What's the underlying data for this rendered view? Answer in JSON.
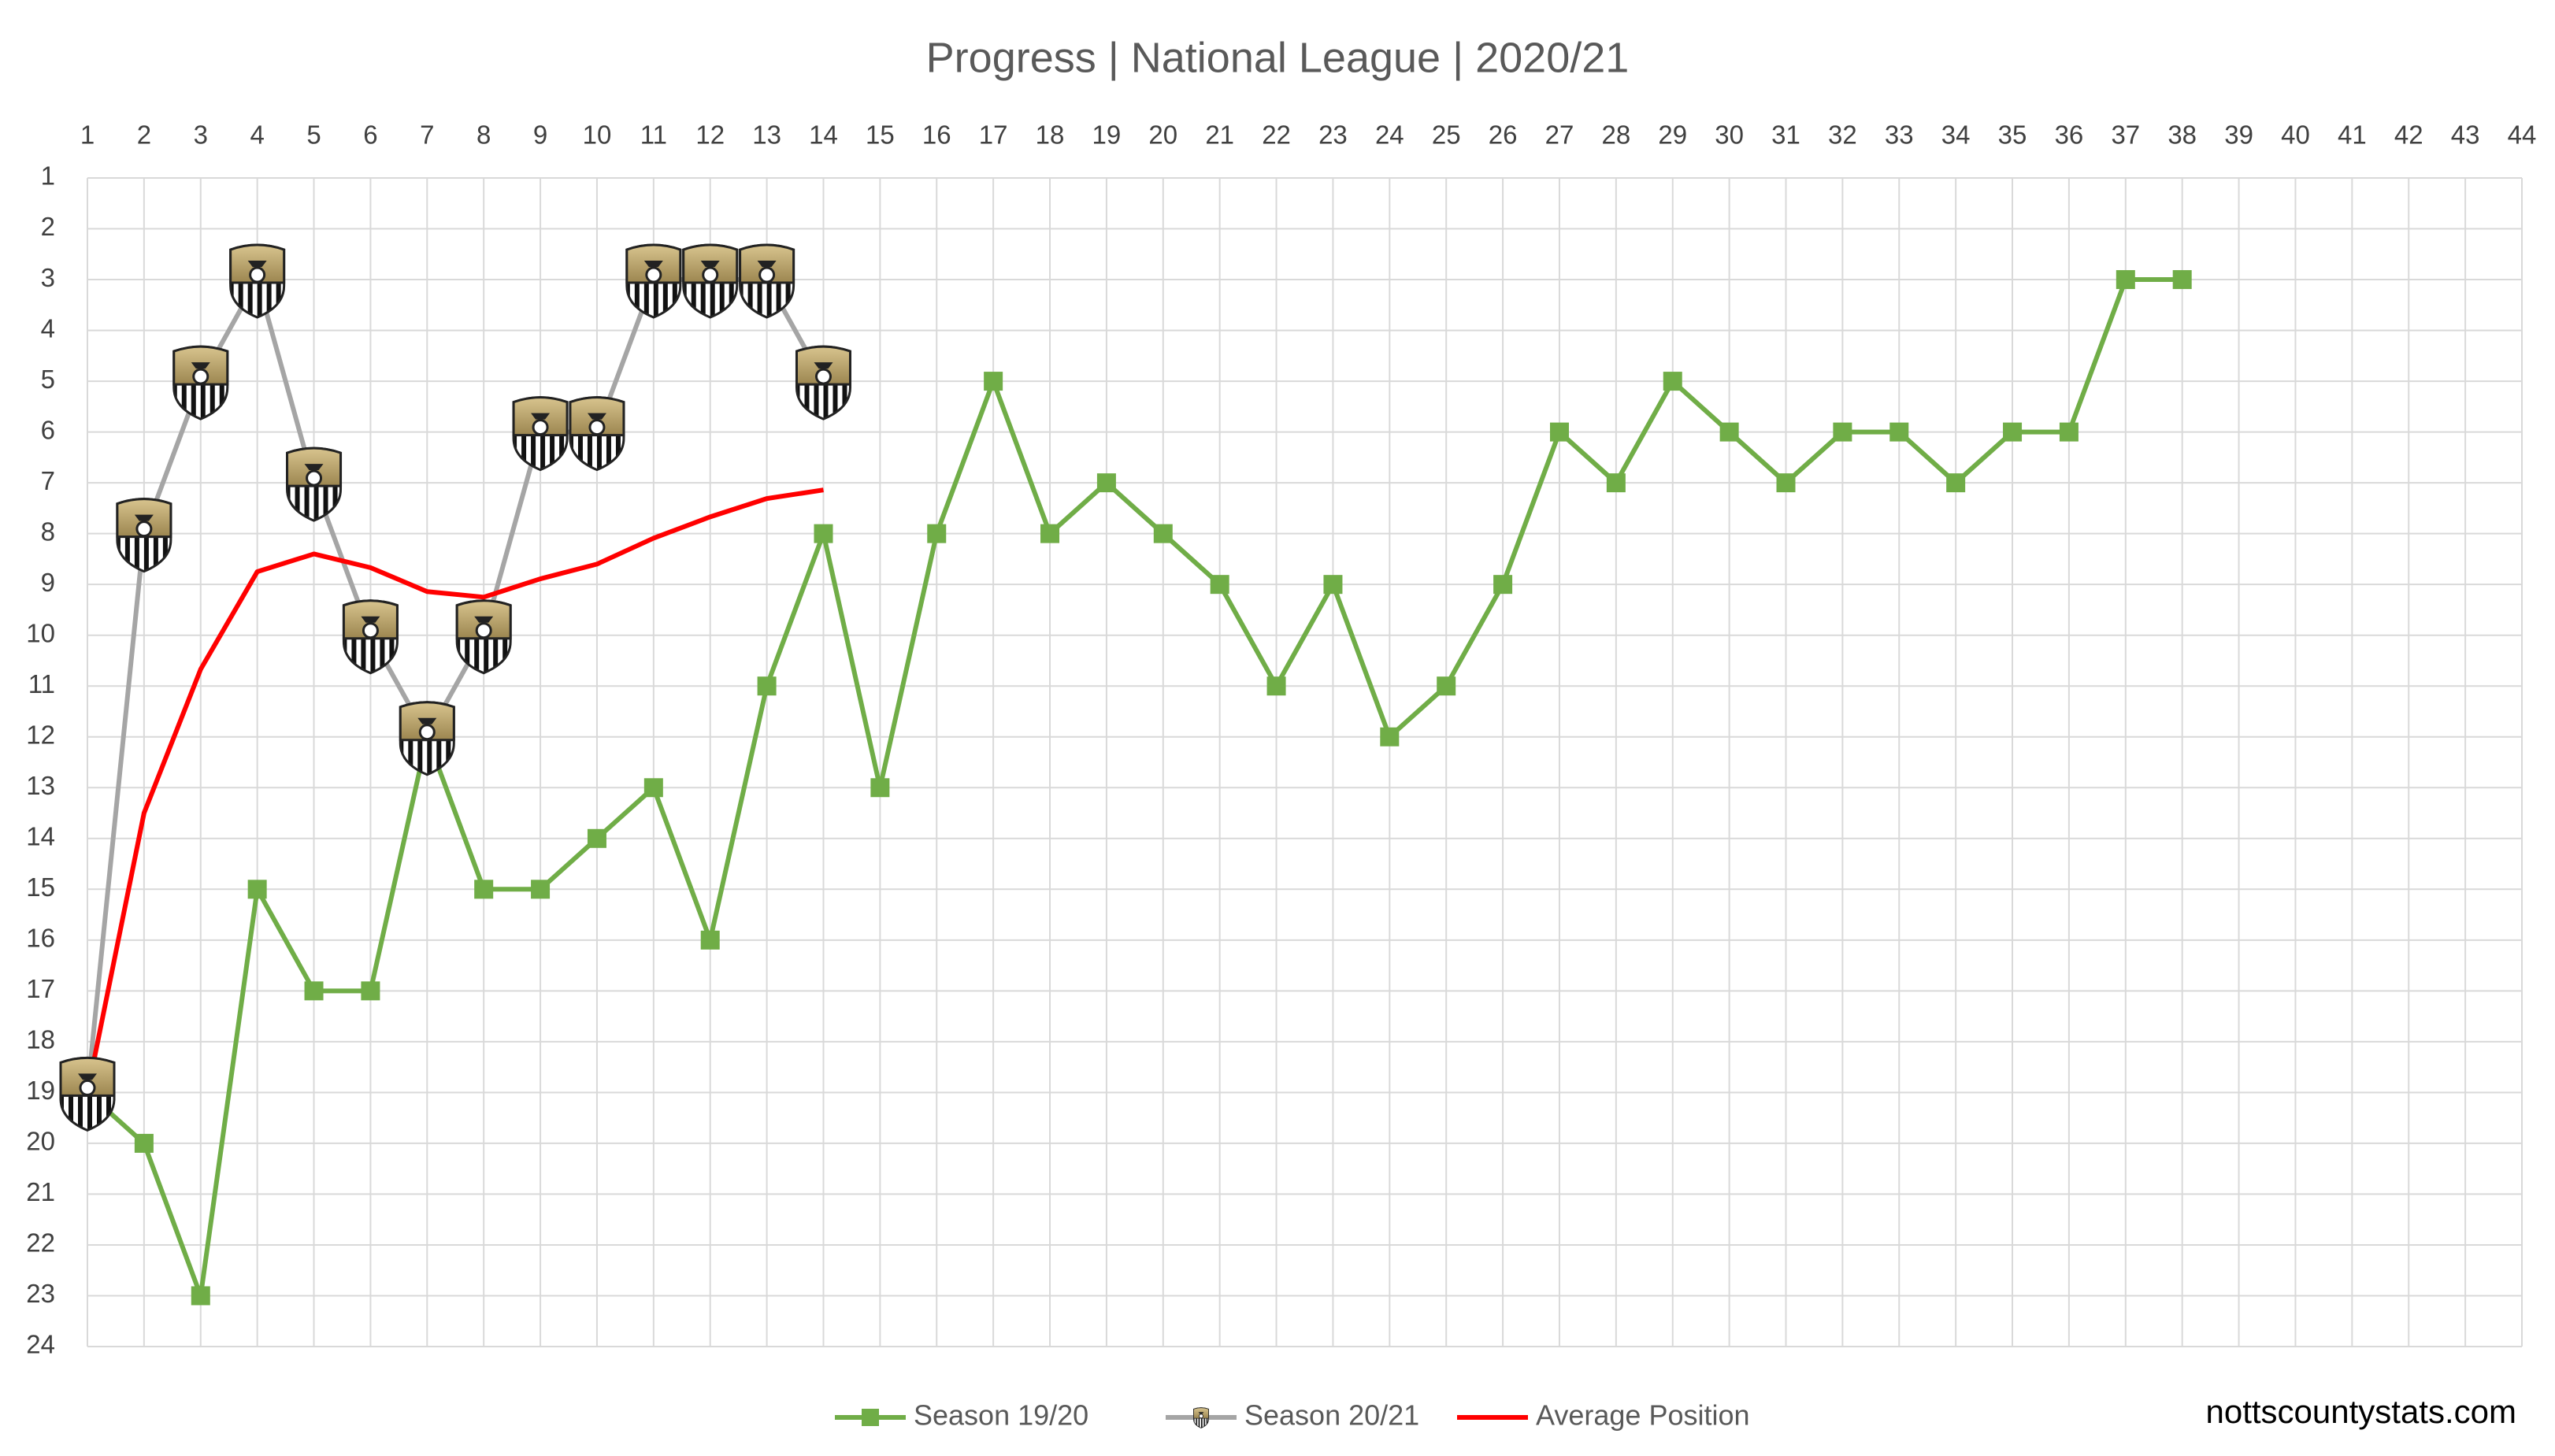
{
  "chart_data": {
    "type": "line",
    "title": "Progress | National League | 2020/21",
    "annotation": "nottscountystats.com",
    "xlim": [
      1,
      44
    ],
    "xticks": [
      1,
      2,
      3,
      4,
      5,
      6,
      7,
      8,
      9,
      10,
      11,
      12,
      13,
      14,
      15,
      16,
      17,
      18,
      19,
      20,
      21,
      22,
      23,
      24,
      25,
      26,
      27,
      28,
      29,
      30,
      31,
      32,
      33,
      34,
      35,
      36,
      37,
      38,
      39,
      40,
      41,
      42,
      43,
      44
    ],
    "ylim": [
      1,
      24
    ],
    "yticks": [
      1,
      2,
      3,
      4,
      5,
      6,
      7,
      8,
      9,
      10,
      11,
      12,
      13,
      14,
      15,
      16,
      17,
      18,
      19,
      20,
      21,
      22,
      23,
      24
    ],
    "y_inverted": true,
    "grid": true,
    "legend": "bottom",
    "series": [
      {
        "name": "Season 19/20",
        "color": "#70ad47",
        "marker": "square",
        "x": [
          1,
          2,
          3,
          4,
          5,
          6,
          7,
          8,
          9,
          10,
          11,
          12,
          13,
          14,
          15,
          16,
          17,
          18,
          19,
          20,
          21,
          22,
          23,
          24,
          25,
          26,
          27,
          28,
          29,
          30,
          31,
          32,
          33,
          34,
          35,
          36,
          37,
          38
        ],
        "values": [
          19,
          20,
          23,
          15,
          17,
          17,
          12,
          15,
          15,
          14,
          13,
          16,
          11,
          8,
          13,
          8,
          5,
          8,
          7,
          8,
          9,
          11,
          9,
          12,
          11,
          9,
          6,
          7,
          5,
          6,
          7,
          6,
          6,
          7,
          6,
          6,
          3,
          3
        ]
      },
      {
        "name": "Season 20/21",
        "color": "#a5a5a5",
        "marker": "badge",
        "x": [
          1,
          2,
          3,
          4,
          5,
          6,
          7,
          8,
          9,
          10,
          11,
          12,
          13,
          14
        ],
        "values": [
          19,
          8,
          5,
          3,
          7,
          10,
          12,
          10,
          6,
          6,
          3,
          3,
          3,
          5
        ]
      },
      {
        "name": "Average Position",
        "color": "#ff0000",
        "marker": "none",
        "x": [
          1,
          2,
          3,
          4,
          5,
          6,
          7,
          8,
          9,
          10,
          11,
          12,
          13,
          14
        ],
        "values": [
          19,
          13.5,
          10.67,
          8.75,
          8.4,
          8.67,
          9.14,
          9.25,
          8.89,
          8.6,
          8.09,
          7.67,
          7.31,
          7.14
        ]
      }
    ]
  }
}
